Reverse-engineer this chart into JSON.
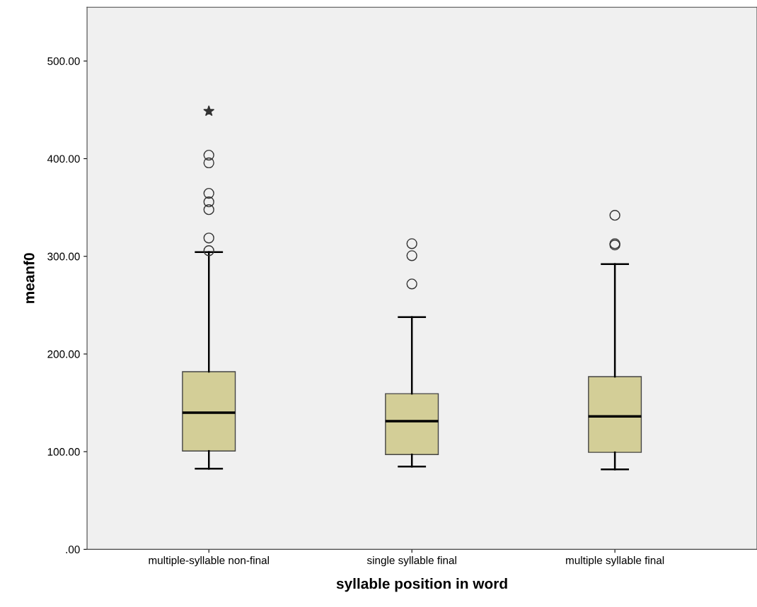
{
  "chart_data": {
    "type": "box",
    "xlabel": "syllable position in word",
    "ylabel": "meanf0",
    "categories": [
      "multiple-syllable non-final",
      "single syllable final",
      "multiple syllable final"
    ],
    "ylim": [
      0,
      555
    ],
    "yticks": [
      {
        "value": 0,
        "label": ".00"
      },
      {
        "value": 100,
        "label": "100.00"
      },
      {
        "value": 200,
        "label": "200.00"
      },
      {
        "value": 300,
        "label": "300.00"
      },
      {
        "value": 400,
        "label": "400.00"
      },
      {
        "value": 500,
        "label": "500.00"
      }
    ],
    "grid": false,
    "series": [
      {
        "color": "#d3ce97",
        "boxes": [
          {
            "low": 82.6,
            "q1": 100.7,
            "median": 139.9,
            "q3": 181.9,
            "high": 304.3,
            "outliers": [
              305.8,
              318.8,
              347.8,
              355.8,
              364.5,
              395.7,
              403.6
            ]
          },
          {
            "low": 84.8,
            "q1": 97.1,
            "median": 131.2,
            "q3": 159.4,
            "high": 237.7,
            "outliers": [
              271.7,
              300.7,
              313.0
            ]
          },
          {
            "low": 81.9,
            "q1": 99.3,
            "median": 136.2,
            "q3": 176.8,
            "high": 292.0,
            "outliers": [
              311.6,
              313.0,
              342.0
            ]
          }
        ]
      },
      {
        "type": "scatter",
        "color": "#333333",
        "marker": "star",
        "x": [
          "multiple-syllable non-final"
        ],
        "values": [
          448.6
        ]
      }
    ]
  }
}
